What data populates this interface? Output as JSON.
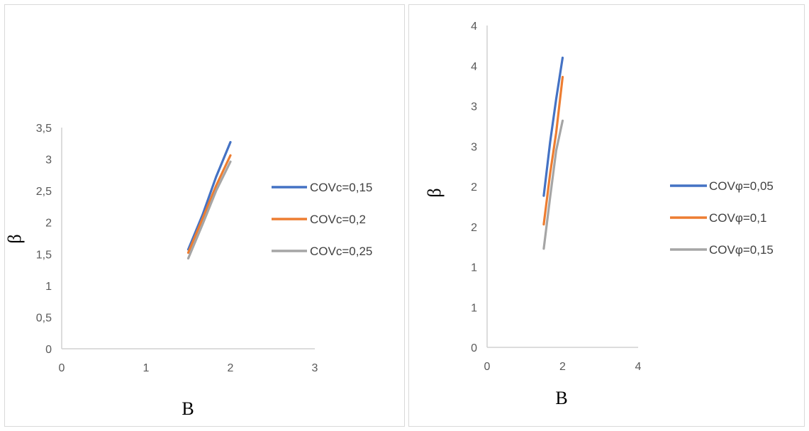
{
  "chart_data": [
    {
      "type": "line",
      "title": "",
      "xlabel": "B",
      "ylabel": "β",
      "xlim": [
        0,
        3
      ],
      "ylim": [
        0,
        3.5
      ],
      "x_ticks": [
        "0",
        "1",
        "2",
        "3"
      ],
      "y_ticks": [
        "0",
        "0,5",
        "1",
        "1,5",
        "2",
        "2,5",
        "3",
        "3,5"
      ],
      "grid": false,
      "legend": "right",
      "series": [
        {
          "name": "COVc=0,15",
          "color": "#4472C4",
          "x": [
            1.5,
            1.67,
            1.83,
            2.0
          ],
          "y": [
            1.57,
            2.12,
            2.72,
            3.27
          ]
        },
        {
          "name": "COVc=0,2",
          "color": "#ED7D31",
          "x": [
            1.5,
            1.67,
            1.83,
            2.0
          ],
          "y": [
            1.52,
            2.06,
            2.58,
            3.06
          ]
        },
        {
          "name": "COVc=0,25",
          "color": "#A5A5A5",
          "x": [
            1.5,
            1.67,
            1.83,
            2.0
          ],
          "y": [
            1.43,
            1.97,
            2.5,
            2.96
          ]
        }
      ]
    },
    {
      "type": "line",
      "title": "",
      "xlabel": "B",
      "ylabel": "β",
      "xlim": [
        0,
        4
      ],
      "ylim": [
        0,
        4.5
      ],
      "x_ticks": [
        "0",
        "2",
        "4"
      ],
      "y_ticks": [
        "0",
        "1",
        "1",
        "2",
        "2",
        "3",
        "3",
        "4",
        "4"
      ],
      "grid": false,
      "legend": "right",
      "series": [
        {
          "name": "COVφ=0,05",
          "color": "#4472C4",
          "x": [
            1.5,
            1.67,
            1.83,
            2.0
          ],
          "y": [
            2.12,
            2.87,
            3.47,
            4.05
          ]
        },
        {
          "name": "COVφ=0,1",
          "color": "#ED7D31",
          "x": [
            1.5,
            1.67,
            1.83,
            2.0
          ],
          "y": [
            1.72,
            2.43,
            3.0,
            3.78
          ]
        },
        {
          "name": "COVφ=0,15",
          "color": "#A5A5A5",
          "x": [
            1.5,
            1.67,
            1.83,
            2.0
          ],
          "y": [
            1.38,
            2.1,
            2.75,
            3.17
          ]
        }
      ]
    }
  ]
}
